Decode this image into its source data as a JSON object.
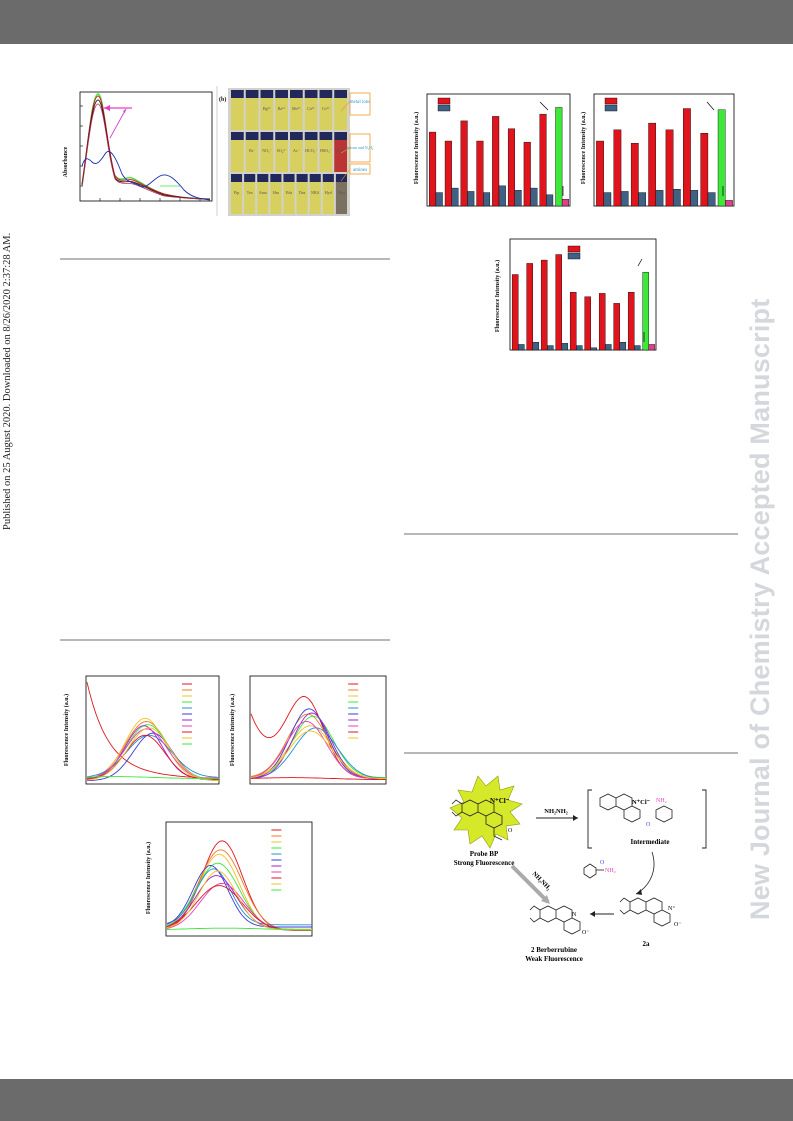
{
  "side_note": "Published on 25 August 2020. Downloaded on 8/26/2020 2:37:28 AM.",
  "watermark": "New Journal of Chemistry Accepted Manuscript",
  "fig_absorbance": {
    "ylabel": "Absorbance"
  },
  "fig_vials": {
    "panel_label": "(b)",
    "labels": [
      "metal ions",
      "anions and N₂H₄",
      "amines"
    ],
    "row1": [
      "",
      "",
      "Hg²⁺",
      "Ba²⁺",
      "Mn²⁺",
      "Ca²⁺",
      "Co²⁺",
      ""
    ],
    "row2": [
      "",
      "Br⁻",
      "NO₃⁻",
      "SO₄²⁻",
      "Ac⁻",
      "HCO₃⁻",
      "HSO₃⁻",
      "N₂H₄"
    ],
    "row3": [
      "Pip",
      "Tea",
      "Ama",
      "Hm",
      "Eda",
      "Dea",
      "NBA",
      "Hyd",
      "Hya"
    ]
  },
  "bar_charts": {
    "ylabel": "Fluorescence Intensity (a.u.)"
  },
  "spectra": {
    "ylabel": "Fluorescence Intensity (a.u.)"
  },
  "scheme": {
    "probe_name": "Probe BP",
    "probe_sub": "Strong Fluorescence",
    "reagent": "NH₂NH₂",
    "intermediate": "Intermediate",
    "product_name": "2 Berberrubine",
    "product_sub": "Weak Fluorescence",
    "compound_2a": "2a",
    "diagonal_reagent": "NH₂NH₂"
  },
  "colors": {
    "red": "#e0141c",
    "blue": "#3f6284",
    "green": "#3de83a",
    "magenta": "#e0408a"
  }
}
